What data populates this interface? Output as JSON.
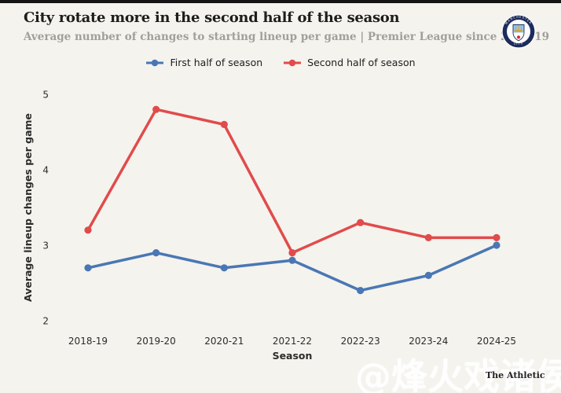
{
  "page": {
    "background": "#f4f3ee",
    "top_bar_color": "#141414",
    "title_color": "#1d1d1b",
    "subtitle_color": "#a0a098"
  },
  "header": {
    "title": "City rotate more in the second half of the season",
    "subtitle": "Average number of changes to starting lineup per game | Premier League since 2018-19"
  },
  "badge": {
    "name": "manchester-city-crest",
    "text_top": "MANCHESTER",
    "text_bottom": "CITY",
    "navy": "#1c2c5b",
    "sky": "#98c5e9",
    "gold": "#d4a32c",
    "rose": "#dc2b28",
    "white": "#ffffff"
  },
  "legend": [
    {
      "label": "First half of season",
      "color": "#4a77b4"
    },
    {
      "label": "Second half of season",
      "color": "#e14b4b"
    }
  ],
  "chart_data": {
    "type": "line",
    "categories": [
      "2018-19",
      "2019-20",
      "2020-21",
      "2021-22",
      "2022-23",
      "2023-24",
      "2024-25"
    ],
    "series": [
      {
        "name": "First half of season",
        "color": "#4a77b4",
        "values": [
          2.7,
          2.9,
          2.7,
          2.8,
          2.4,
          2.6,
          3.0
        ]
      },
      {
        "name": "Second half of season",
        "color": "#e14b4b",
        "values": [
          3.2,
          4.8,
          4.6,
          2.9,
          3.3,
          3.1,
          3.1
        ]
      }
    ],
    "title": "City rotate more in the second half of the season",
    "xlabel": "Season",
    "ylabel": "Average lineup changes per game",
    "yticks": [
      2,
      3,
      4,
      5
    ],
    "ylim": [
      1.8,
      5.2
    ],
    "grid": false,
    "legend_position": "top"
  },
  "footer": {
    "credit": "The Athletic",
    "watermark": "@烽火戏诸侯"
  }
}
